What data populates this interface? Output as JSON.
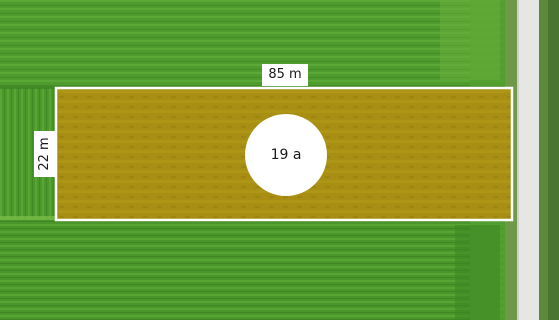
{
  "map": {
    "view": "aerial-farmland",
    "colors": {
      "field_green": "#4e9a2c",
      "field_green_dark": "#3f8a24",
      "plot_fill": "#a88e12",
      "plot_border": "#ffffff",
      "road": "#e6e6e4",
      "verge": "#5c8a3a"
    }
  },
  "plot": {
    "length_label": "85 m",
    "width_label": "22 m",
    "area_label": "19 a"
  }
}
